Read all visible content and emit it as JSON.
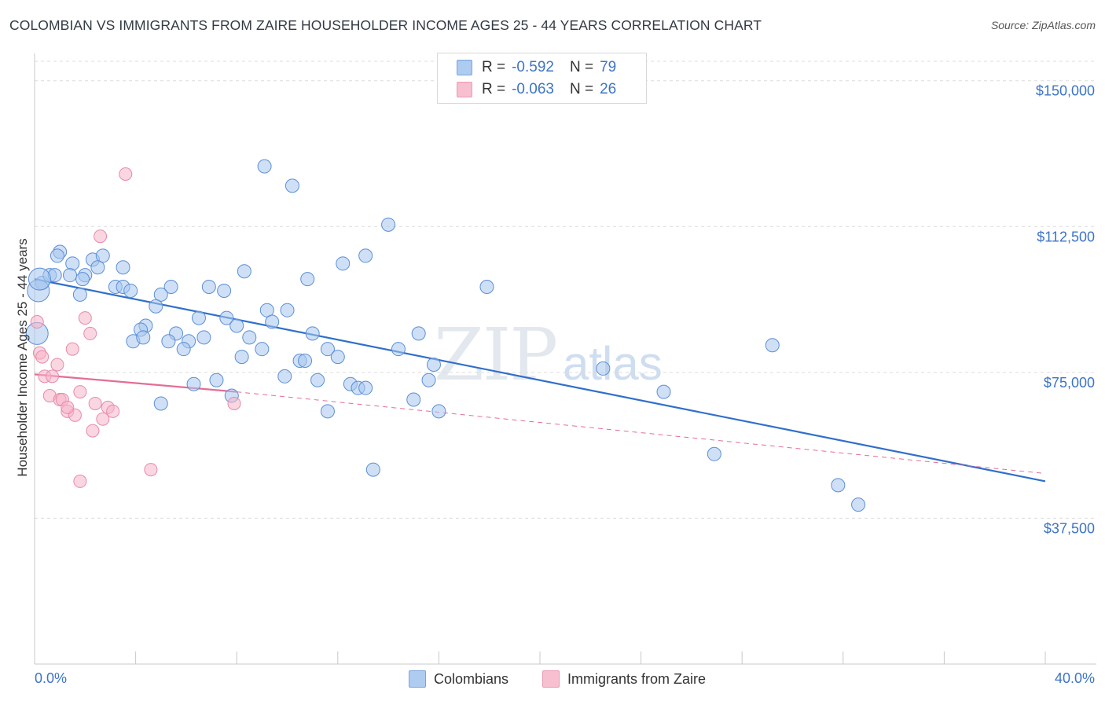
{
  "title": "COLOMBIAN VS IMMIGRANTS FROM ZAIRE HOUSEHOLDER INCOME AGES 25 - 44 YEARS CORRELATION CHART",
  "source": "Source: ZipAtlas.com",
  "watermark": {
    "zip": "ZIP",
    "atlas": "atlas"
  },
  "legend": {
    "rows": [
      {
        "r_label": "R =",
        "r_value": "-0.592",
        "n_label": "N =",
        "n_value": "79",
        "color": "#aecbf0"
      },
      {
        "r_label": "R =",
        "r_value": "-0.063",
        "n_label": "N =",
        "n_value": "26",
        "color": "#f7bfd0"
      }
    ]
  },
  "bottom_legend": [
    {
      "label": "Colombians",
      "color": "#aecbf0"
    },
    {
      "label": "Immigrants from Zaire",
      "color": "#f7bfd0"
    }
  ],
  "colors": {
    "blue": "#3d74c7",
    "blue_fill": "#a8c6ee",
    "blue_line": "#2f6fcc",
    "pink": "#e36d97",
    "pink_fill": "#f5b5c8"
  },
  "chart_data": {
    "type": "scatter",
    "title": "COLOMBIAN VS IMMIGRANTS FROM ZAIRE HOUSEHOLDER INCOME AGES 25 - 44 YEARS CORRELATION CHART",
    "xlabel": "",
    "ylabel": "Householder Income Ages 25 - 44 years",
    "xlim": [
      0,
      40
    ],
    "ylim": [
      0,
      155000
    ],
    "x_tick_labels": [
      "0.0%",
      "40.0%"
    ],
    "y_ticks": [
      37500,
      75000,
      112500,
      150000
    ],
    "y_tick_labels": [
      "$37,500",
      "$75,000",
      "$112,500",
      "$150,000"
    ],
    "grid": true,
    "legend_position": "top-center",
    "series": [
      {
        "name": "Colombians",
        "r": -0.592,
        "n": 79,
        "trend": {
          "x": [
            0,
            40
          ],
          "y": [
            99000,
            47000
          ]
        },
        "points": [
          [
            0.3,
            98000
          ],
          [
            0.6,
            100000
          ],
          [
            1.0,
            106000
          ],
          [
            0.9,
            105000
          ],
          [
            1.5,
            103000
          ],
          [
            2.3,
            104000
          ],
          [
            2.7,
            105000
          ],
          [
            2.5,
            102000
          ],
          [
            3.5,
            102000
          ],
          [
            0.8,
            100000
          ],
          [
            1.4,
            100000
          ],
          [
            2.0,
            100000
          ],
          [
            1.9,
            99000
          ],
          [
            3.2,
            97000
          ],
          [
            3.5,
            97000
          ],
          [
            3.8,
            96000
          ],
          [
            1.8,
            95000
          ],
          [
            5.4,
            97000
          ],
          [
            6.9,
            97000
          ],
          [
            7.5,
            96000
          ],
          [
            5.0,
            95000
          ],
          [
            4.8,
            92000
          ],
          [
            8.3,
            101000
          ],
          [
            10.8,
            99000
          ],
          [
            12.2,
            103000
          ],
          [
            13.1,
            105000
          ],
          [
            14.0,
            113000
          ],
          [
            10.2,
            123000
          ],
          [
            9.1,
            128000
          ],
          [
            7.6,
            89000
          ],
          [
            6.5,
            89000
          ],
          [
            4.4,
            87000
          ],
          [
            4.2,
            86000
          ],
          [
            5.6,
            85000
          ],
          [
            8.0,
            87000
          ],
          [
            9.2,
            91000
          ],
          [
            9.4,
            88000
          ],
          [
            10.0,
            91000
          ],
          [
            3.9,
            83000
          ],
          [
            4.3,
            84000
          ],
          [
            5.3,
            83000
          ],
          [
            6.1,
            83000
          ],
          [
            6.7,
            84000
          ],
          [
            8.5,
            84000
          ],
          [
            9.0,
            81000
          ],
          [
            11.0,
            85000
          ],
          [
            11.6,
            81000
          ],
          [
            5.9,
            81000
          ],
          [
            8.2,
            79000
          ],
          [
            10.5,
            78000
          ],
          [
            10.7,
            78000
          ],
          [
            12.0,
            79000
          ],
          [
            14.4,
            81000
          ],
          [
            15.2,
            85000
          ],
          [
            15.8,
            77000
          ],
          [
            17.9,
            97000
          ],
          [
            9.9,
            74000
          ],
          [
            11.2,
            73000
          ],
          [
            12.5,
            72000
          ],
          [
            12.8,
            71000
          ],
          [
            13.1,
            71000
          ],
          [
            15.6,
            73000
          ],
          [
            15.0,
            68000
          ],
          [
            16.0,
            65000
          ],
          [
            7.2,
            73000
          ],
          [
            6.3,
            72000
          ],
          [
            7.8,
            69000
          ],
          [
            5.0,
            67000
          ],
          [
            11.6,
            65000
          ],
          [
            13.4,
            50000
          ],
          [
            22.5,
            76000
          ],
          [
            24.9,
            70000
          ],
          [
            29.2,
            82000
          ],
          [
            26.9,
            54000
          ],
          [
            31.8,
            46000
          ],
          [
            32.6,
            41000
          ],
          [
            0.15,
            96000
          ],
          [
            0.1,
            85000
          ],
          [
            0.2,
            99000
          ]
        ]
      },
      {
        "name": "Immigrants from Zaire",
        "r": -0.063,
        "n": 26,
        "trend": {
          "x": [
            0,
            8
          ],
          "y": [
            74500,
            70000
          ],
          "dashed_to": [
            40,
            49000
          ]
        },
        "points": [
          [
            0.1,
            88000
          ],
          [
            0.2,
            80000
          ],
          [
            0.3,
            79000
          ],
          [
            0.4,
            74000
          ],
          [
            0.7,
            74000
          ],
          [
            0.9,
            77000
          ],
          [
            1.5,
            81000
          ],
          [
            2.0,
            89000
          ],
          [
            2.2,
            85000
          ],
          [
            2.6,
            110000
          ],
          [
            3.6,
            126000
          ],
          [
            0.6,
            69000
          ],
          [
            1.0,
            68000
          ],
          [
            1.1,
            68000
          ],
          [
            1.3,
            65000
          ],
          [
            1.6,
            64000
          ],
          [
            1.8,
            70000
          ],
          [
            2.4,
            67000
          ],
          [
            2.7,
            63000
          ],
          [
            2.9,
            66000
          ],
          [
            3.1,
            65000
          ],
          [
            1.3,
            66000
          ],
          [
            2.3,
            60000
          ],
          [
            1.8,
            47000
          ],
          [
            4.6,
            50000
          ],
          [
            7.9,
            67000
          ]
        ]
      }
    ]
  }
}
